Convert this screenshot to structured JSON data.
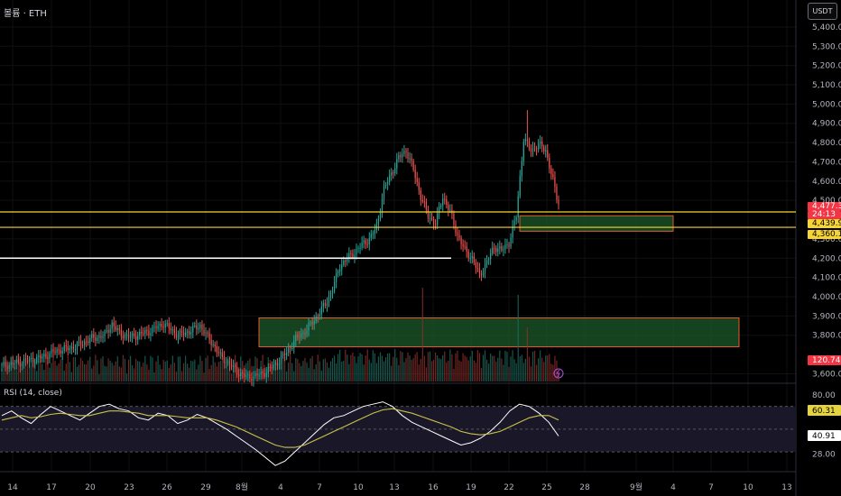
{
  "header": {
    "symbol_title": "볼륨 · ETH",
    "currency_button": "USDT",
    "rsi_title": "RSI (14, close)"
  },
  "price_badges": {
    "current": "4,477.35",
    "countdown": "24:13",
    "level_upper": "4,439.93",
    "level_lower": "4,360.13",
    "volume": "120.74K",
    "rsi_value": "60.31",
    "rsi_ma": "40.91"
  },
  "colors": {
    "up": "#26a69a",
    "down": "#ef5350",
    "level_line": "#f6d431",
    "zone_fill": "#1e5a2a",
    "zone_border": "#e65b2b",
    "rsi_line": "#ffffff",
    "rsi_ma_line": "#c9c24a",
    "rsi_band": "#1a1828"
  },
  "chart_data": [
    {
      "type": "candlestick",
      "title": "볼륨 · ETH",
      "y_unit": "USDT",
      "ylim": [
        3560,
        5540
      ],
      "y_ticks": [
        "5,400.00",
        "5,300.00",
        "5,200.00",
        "5,100.00",
        "5,000.00",
        "4,900.00",
        "4,800.00",
        "4,700.00",
        "4,600.00",
        "4,500.00",
        "4,300.00",
        "4,200.00",
        "4,100.00",
        "4,000.00",
        "3,900.00",
        "3,800.00",
        "3,600.00"
      ],
      "x_ticks": [
        "14",
        "17",
        "20",
        "23",
        "26",
        "29",
        "8월",
        "4",
        "7",
        "10",
        "13",
        "16",
        "19",
        "22",
        "25",
        "28",
        "9월",
        "4",
        "7",
        "10",
        "13"
      ],
      "key_prices": [
        {
          "t": 0,
          "p": 3640
        },
        {
          "t": 20,
          "p": 3680
        },
        {
          "t": 30,
          "p": 3720
        },
        {
          "t": 40,
          "p": 3740
        },
        {
          "t": 48,
          "p": 3780
        },
        {
          "t": 56,
          "p": 3800
        },
        {
          "t": 60,
          "p": 3860
        },
        {
          "t": 64,
          "p": 3810
        },
        {
          "t": 70,
          "p": 3790
        },
        {
          "t": 80,
          "p": 3820
        },
        {
          "t": 88,
          "p": 3860
        },
        {
          "t": 96,
          "p": 3800
        },
        {
          "t": 102,
          "p": 3820
        },
        {
          "t": 108,
          "p": 3850
        },
        {
          "t": 112,
          "p": 3790
        },
        {
          "t": 116,
          "p": 3740
        },
        {
          "t": 119,
          "p": 3690
        },
        {
          "t": 124,
          "p": 3650
        },
        {
          "t": 128,
          "p": 3610
        },
        {
          "t": 134,
          "p": 3580
        },
        {
          "t": 142,
          "p": 3600
        },
        {
          "t": 148,
          "p": 3640
        },
        {
          "t": 154,
          "p": 3700
        },
        {
          "t": 160,
          "p": 3780
        },
        {
          "t": 166,
          "p": 3830
        },
        {
          "t": 170,
          "p": 3880
        },
        {
          "t": 176,
          "p": 3960
        },
        {
          "t": 180,
          "p": 4040
        },
        {
          "t": 184,
          "p": 4160
        },
        {
          "t": 188,
          "p": 4200
        },
        {
          "t": 192,
          "p": 4230
        },
        {
          "t": 196,
          "p": 4270
        },
        {
          "t": 200,
          "p": 4300
        },
        {
          "t": 204,
          "p": 4360
        },
        {
          "t": 208,
          "p": 4560
        },
        {
          "t": 212,
          "p": 4640
        },
        {
          "t": 216,
          "p": 4720
        },
        {
          "t": 220,
          "p": 4760
        },
        {
          "t": 224,
          "p": 4660
        },
        {
          "t": 228,
          "p": 4520
        },
        {
          "t": 232,
          "p": 4420
        },
        {
          "t": 236,
          "p": 4380
        },
        {
          "t": 240,
          "p": 4520
        },
        {
          "t": 244,
          "p": 4440
        },
        {
          "t": 248,
          "p": 4320
        },
        {
          "t": 252,
          "p": 4240
        },
        {
          "t": 256,
          "p": 4200
        },
        {
          "t": 260,
          "p": 4110
        },
        {
          "t": 264,
          "p": 4180
        },
        {
          "t": 268,
          "p": 4260
        },
        {
          "t": 272,
          "p": 4240
        },
        {
          "t": 276,
          "p": 4280
        },
        {
          "t": 280,
          "p": 4420
        },
        {
          "t": 284,
          "p": 4820
        },
        {
          "t": 288,
          "p": 4760
        },
        {
          "t": 292,
          "p": 4790
        },
        {
          "t": 296,
          "p": 4760
        },
        {
          "t": 300,
          "p": 4600
        },
        {
          "t": 303,
          "p": 4477
        }
      ],
      "horizontal_levels": [
        4439.93,
        4360.13
      ],
      "drawn_line_price": 4200,
      "drawn_line_range": [
        "19",
        "3"
      ],
      "zones": [
        {
          "from_date": "22",
          "to_date": "4",
          "high": 4420,
          "low": 4340
        },
        {
          "from_date": "2",
          "to_date": "10",
          "high": 3890,
          "low": 3740
        }
      ]
    },
    {
      "type": "line",
      "title": "RSI (14, close)",
      "ylim": [
        15,
        88
      ],
      "y_ticks": [
        "80.00",
        "28.00"
      ],
      "band": [
        30,
        70
      ],
      "series": [
        {
          "values": [
            62,
            66,
            60,
            55,
            63,
            70,
            66,
            62,
            58,
            64,
            70,
            72,
            68,
            66,
            60,
            58,
            64,
            62,
            55,
            58,
            63,
            60,
            55,
            50,
            44,
            38,
            32,
            25,
            18,
            22,
            30,
            38,
            46,
            54,
            60,
            62,
            66,
            70,
            72,
            74,
            70,
            62,
            56,
            52,
            48,
            44,
            40,
            36,
            38,
            42,
            48,
            56,
            66,
            72,
            70,
            64,
            56,
            44
          ]
        },
        {
          "values": [
            58,
            60,
            62,
            60,
            61,
            63,
            64,
            63,
            62,
            62,
            64,
            66,
            66,
            65,
            64,
            62,
            62,
            62,
            61,
            60,
            60,
            60,
            58,
            55,
            52,
            48,
            44,
            40,
            36,
            34,
            34,
            36,
            40,
            44,
            48,
            52,
            56,
            60,
            64,
            67,
            68,
            66,
            64,
            61,
            58,
            55,
            52,
            48,
            46,
            45,
            46,
            48,
            52,
            56,
            60,
            62,
            62,
            58
          ]
        }
      ]
    }
  ]
}
